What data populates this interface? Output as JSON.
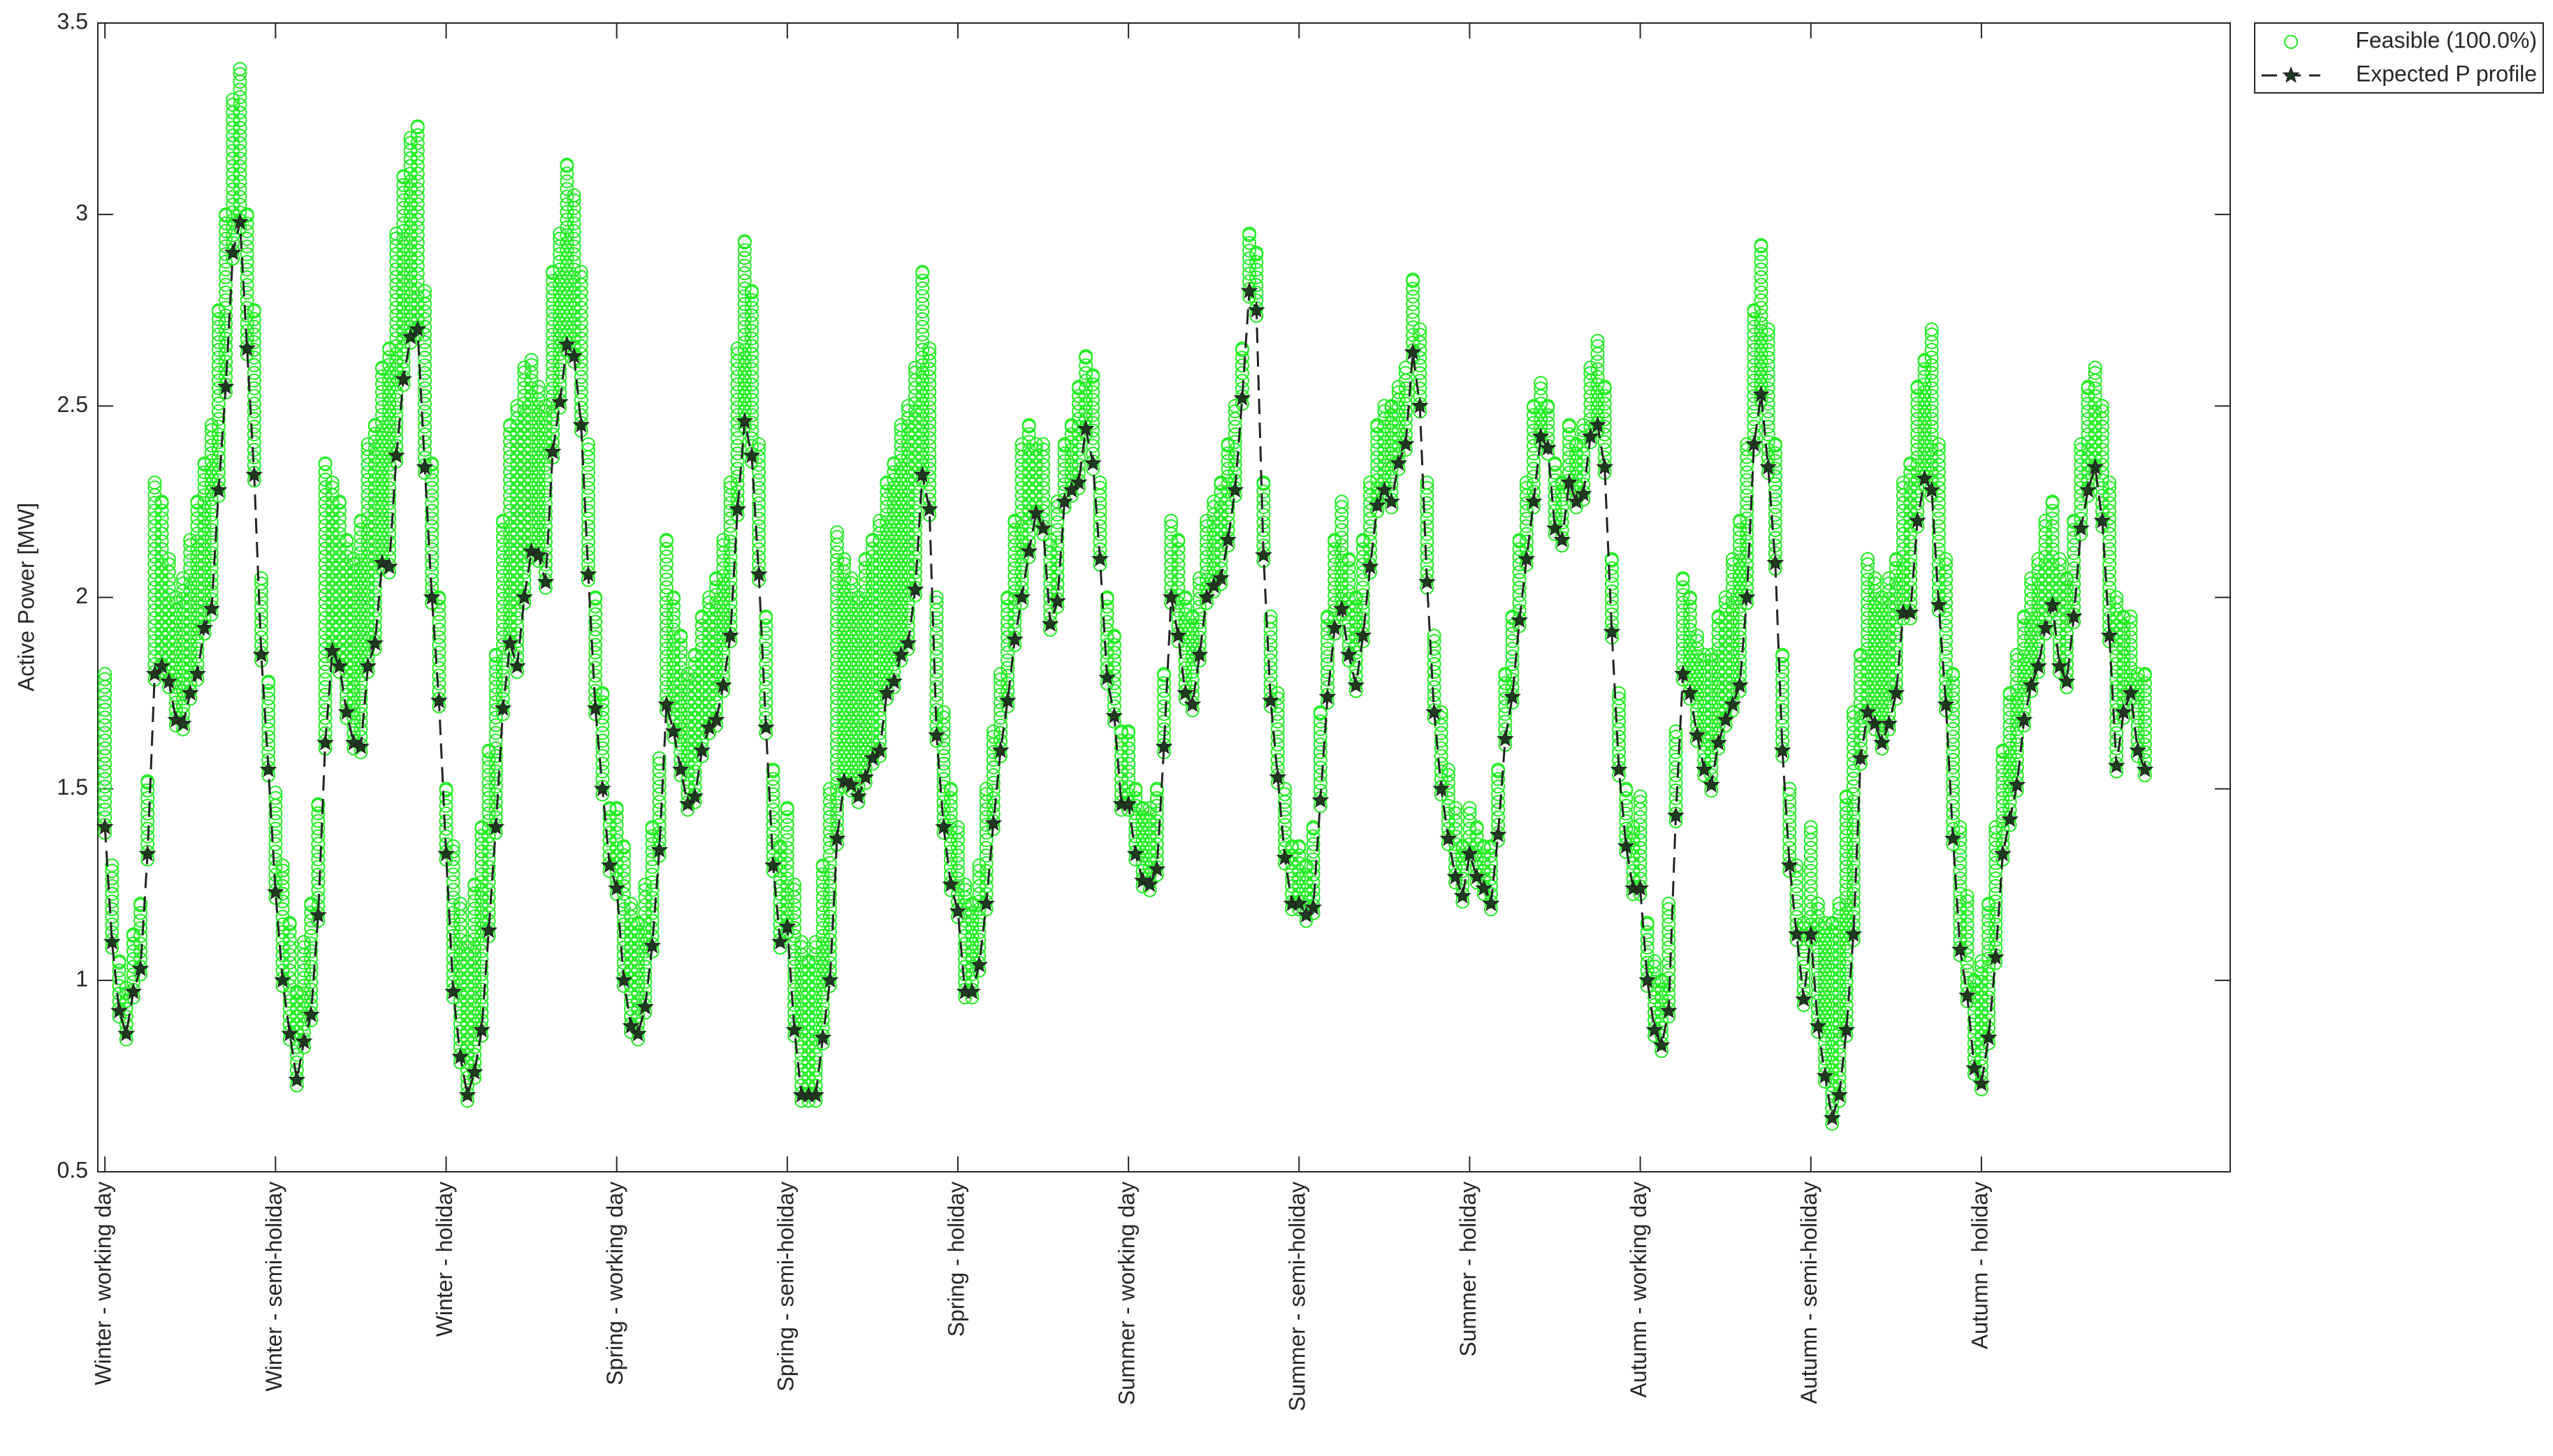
{
  "chart_data": {
    "type": "scatter-line",
    "ylabel": "Active Power [MW]",
    "xlim": [
      0,
      300
    ],
    "ylim": [
      0.5,
      3.5
    ],
    "yticks": [
      0.5,
      1,
      1.5,
      2,
      2.5,
      3,
      3.5
    ],
    "xticks": [
      {
        "value": 1,
        "label": "Winter - working day"
      },
      {
        "value": 25,
        "label": "Winter - semi-holiday"
      },
      {
        "value": 49,
        "label": "Winter - holiday"
      },
      {
        "value": 73,
        "label": "Spring - working day"
      },
      {
        "value": 97,
        "label": "Spring - semi-holiday"
      },
      {
        "value": 121,
        "label": "Spring - holiday"
      },
      {
        "value": 145,
        "label": "Summer - working day"
      },
      {
        "value": 169,
        "label": "Summer - semi-holiday"
      },
      {
        "value": 193,
        "label": "Summer - holiday"
      },
      {
        "value": 217,
        "label": "Autumn - working day"
      },
      {
        "value": 241,
        "label": "Autumn - semi-holiday"
      },
      {
        "value": 265,
        "label": "Autumn - holiday"
      }
    ],
    "grid": false,
    "legend": "outside-right",
    "x": [
      1,
      2,
      3,
      4,
      5,
      6,
      7,
      8,
      9,
      10,
      11,
      12,
      13,
      14,
      15,
      16,
      17,
      18,
      19,
      20,
      21,
      22,
      23,
      24,
      25,
      26,
      27,
      28,
      29,
      30,
      31,
      32,
      33,
      34,
      35,
      36,
      37,
      38,
      39,
      40,
      41,
      42,
      43,
      44,
      45,
      46,
      47,
      48,
      49,
      50,
      51,
      52,
      53,
      54,
      55,
      56,
      57,
      58,
      59,
      60,
      61,
      62,
      63,
      64,
      65,
      66,
      67,
      68,
      69,
      70,
      71,
      72,
      73,
      74,
      75,
      76,
      77,
      78,
      79,
      80,
      81,
      82,
      83,
      84,
      85,
      86,
      87,
      88,
      89,
      90,
      91,
      92,
      93,
      94,
      95,
      96,
      97,
      98,
      99,
      100,
      101,
      102,
      103,
      104,
      105,
      106,
      107,
      108,
      109,
      110,
      111,
      112,
      113,
      114,
      115,
      116,
      117,
      118,
      119,
      120,
      121,
      122,
      123,
      124,
      125,
      126,
      127,
      128,
      129,
      130,
      131,
      132,
      133,
      134,
      135,
      136,
      137,
      138,
      139,
      140,
      141,
      142,
      143,
      144,
      145,
      146,
      147,
      148,
      149,
      150,
      151,
      152,
      153,
      154,
      155,
      156,
      157,
      158,
      159,
      160,
      161,
      162,
      163,
      164,
      165,
      166,
      167,
      168,
      169,
      170,
      171,
      172,
      173,
      174,
      175,
      176,
      177,
      178,
      179,
      180,
      181,
      182,
      183,
      184,
      185,
      186,
      187,
      188,
      189,
      190,
      191,
      192,
      193,
      194,
      195,
      196,
      197,
      198,
      199,
      200,
      201,
      202,
      203,
      204,
      205,
      206,
      207,
      208,
      209,
      210,
      211,
      212,
      213,
      214,
      215,
      216,
      217,
      218,
      219,
      220,
      221,
      222,
      223,
      224,
      225,
      226,
      227,
      228,
      229,
      230,
      231,
      232,
      233,
      234,
      235,
      236,
      237,
      238,
      239,
      240,
      241,
      242,
      243,
      244,
      245,
      246,
      247,
      248,
      249,
      250,
      251,
      252,
      253,
      254,
      255,
      256,
      257,
      258,
      259,
      260,
      261,
      262,
      263,
      264,
      265,
      266,
      267,
      268,
      269,
      270,
      271,
      272,
      273,
      274,
      275,
      276,
      277,
      278,
      279,
      280,
      281,
      282,
      283,
      284,
      285,
      286,
      287,
      288
    ],
    "series": [
      {
        "name": "Feasible (100.0%)",
        "color": "#22ee22",
        "marker": "circle",
        "values": [
          1.8,
          1.3,
          1.05,
          0.98,
          1.12,
          1.2,
          1.52,
          2.3,
          2.25,
          2.1,
          2.0,
          2.05,
          2.15,
          2.25,
          2.35,
          2.45,
          2.75,
          3.0,
          3.3,
          3.38,
          3.0,
          2.75,
          2.05,
          1.78,
          1.49,
          1.3,
          1.15,
          0.97,
          1.1,
          1.2,
          1.46,
          2.35,
          2.3,
          2.25,
          2.15,
          2.1,
          2.2,
          2.4,
          2.45,
          2.6,
          2.65,
          2.95,
          3.1,
          3.2,
          3.23,
          2.8,
          2.35,
          2.0,
          1.5,
          1.35,
          1.2,
          1.1,
          1.25,
          1.4,
          1.6,
          1.85,
          2.2,
          2.45,
          2.5,
          2.6,
          2.62,
          2.55,
          2.5,
          2.85,
          2.95,
          3.13,
          3.05,
          2.85,
          2.4,
          2.0,
          1.75,
          1.45,
          1.45,
          1.35,
          1.2,
          1.15,
          1.25,
          1.4,
          1.58,
          2.15,
          2.0,
          1.9,
          1.8,
          1.85,
          1.95,
          2.0,
          2.05,
          2.15,
          2.3,
          2.65,
          2.93,
          2.8,
          2.4,
          1.95,
          1.55,
          1.35,
          1.45,
          1.25,
          1.1,
          1.05,
          1.1,
          1.3,
          1.5,
          2.17,
          2.1,
          2.05,
          2.0,
          2.1,
          2.15,
          2.2,
          2.3,
          2.35,
          2.45,
          2.5,
          2.6,
          2.85,
          2.65,
          2.0,
          1.7,
          1.5,
          1.4,
          1.25,
          1.2,
          1.3,
          1.5,
          1.65,
          1.8,
          2.0,
          2.2,
          2.4,
          2.45,
          2.4,
          2.4,
          2.15,
          2.25,
          2.4,
          2.45,
          2.55,
          2.63,
          2.58,
          2.3,
          2.0,
          1.9,
          1.65,
          1.65,
          1.5,
          1.45,
          1.45,
          1.5,
          1.8,
          2.2,
          2.15,
          2.0,
          1.95,
          2.05,
          2.2,
          2.25,
          2.3,
          2.4,
          2.5,
          2.65,
          2.95,
          2.9,
          2.3,
          1.95,
          1.75,
          1.5,
          1.35,
          1.35,
          1.3,
          1.4,
          1.7,
          1.95,
          2.15,
          2.25,
          2.1,
          2.0,
          2.15,
          2.3,
          2.45,
          2.5,
          2.5,
          2.55,
          2.6,
          2.83,
          2.7,
          2.3,
          1.9,
          1.7,
          1.55,
          1.45,
          1.35,
          1.45,
          1.4,
          1.35,
          1.35,
          1.55,
          1.8,
          1.95,
          2.15,
          2.3,
          2.5,
          2.56,
          2.5,
          2.35,
          2.3,
          2.45,
          2.4,
          2.45,
          2.6,
          2.67,
          2.55,
          2.1,
          1.75,
          1.5,
          1.4,
          1.48,
          1.15,
          1.05,
          1.0,
          1.2,
          1.65,
          2.05,
          2.0,
          1.9,
          1.85,
          1.85,
          1.95,
          2.0,
          2.1,
          2.2,
          2.4,
          2.75,
          2.92,
          2.7,
          2.4,
          1.85,
          1.5,
          1.3,
          1.15,
          1.4,
          1.2,
          1.15,
          1.15,
          1.2,
          1.48,
          1.7,
          1.85,
          2.1,
          2.05,
          2.0,
          2.05,
          2.1,
          2.3,
          2.35,
          2.55,
          2.62,
          2.7,
          2.4,
          2.1,
          1.8,
          1.4,
          1.22,
          1.0,
          1.05,
          1.2,
          1.4,
          1.6,
          1.75,
          1.85,
          1.95,
          2.05,
          2.1,
          2.2,
          2.25,
          2.1,
          2.05,
          2.2,
          2.4,
          2.55,
          2.6,
          2.5,
          2.3,
          2.0,
          1.95,
          1.95,
          1.8,
          1.8
        ]
      },
      {
        "name": "Expected P profile",
        "color": "#222222",
        "marker": "star",
        "values": [
          1.4,
          1.1,
          0.92,
          0.86,
          0.97,
          1.03,
          1.33,
          1.8,
          1.82,
          1.78,
          1.68,
          1.67,
          1.75,
          1.8,
          1.92,
          1.97,
          2.28,
          2.55,
          2.9,
          2.98,
          2.65,
          2.32,
          1.85,
          1.55,
          1.23,
          1.0,
          0.86,
          0.74,
          0.84,
          0.91,
          1.17,
          1.62,
          1.86,
          1.82,
          1.7,
          1.62,
          1.61,
          1.82,
          1.88,
          2.09,
          2.08,
          2.37,
          2.57,
          2.68,
          2.7,
          2.34,
          2.0,
          1.73,
          1.33,
          0.97,
          0.8,
          0.7,
          0.76,
          0.87,
          1.13,
          1.4,
          1.71,
          1.88,
          1.82,
          2.0,
          2.12,
          2.11,
          2.04,
          2.38,
          2.51,
          2.66,
          2.63,
          2.45,
          2.06,
          1.71,
          1.5,
          1.3,
          1.24,
          1.0,
          0.88,
          0.86,
          0.93,
          1.09,
          1.34,
          1.72,
          1.65,
          1.55,
          1.46,
          1.48,
          1.6,
          1.66,
          1.68,
          1.77,
          1.9,
          2.23,
          2.46,
          2.37,
          2.06,
          1.66,
          1.3,
          1.1,
          1.14,
          0.87,
          0.7,
          0.7,
          0.7,
          0.85,
          1.0,
          1.37,
          1.52,
          1.51,
          1.48,
          1.53,
          1.58,
          1.6,
          1.75,
          1.78,
          1.85,
          1.88,
          2.02,
          2.32,
          2.23,
          1.64,
          1.4,
          1.25,
          1.18,
          0.97,
          0.97,
          1.04,
          1.2,
          1.41,
          1.6,
          1.73,
          1.89,
          2.0,
          2.12,
          2.22,
          2.18,
          1.93,
          1.99,
          2.25,
          2.28,
          2.3,
          2.44,
          2.35,
          2.1,
          1.79,
          1.69,
          1.46,
          1.46,
          1.33,
          1.26,
          1.25,
          1.29,
          1.61,
          2.0,
          1.9,
          1.75,
          1.72,
          1.85,
          2.0,
          2.03,
          2.05,
          2.15,
          2.28,
          2.52,
          2.8,
          2.75,
          2.11,
          1.73,
          1.53,
          1.32,
          1.2,
          1.2,
          1.17,
          1.19,
          1.47,
          1.74,
          1.92,
          1.97,
          1.85,
          1.77,
          1.9,
          2.08,
          2.24,
          2.28,
          2.25,
          2.35,
          2.4,
          2.64,
          2.5,
          2.04,
          1.7,
          1.5,
          1.37,
          1.27,
          1.22,
          1.33,
          1.27,
          1.24,
          1.2,
          1.38,
          1.63,
          1.74,
          1.94,
          2.1,
          2.25,
          2.42,
          2.39,
          2.18,
          2.15,
          2.3,
          2.25,
          2.27,
          2.42,
          2.45,
          2.34,
          1.91,
          1.55,
          1.35,
          1.24,
          1.24,
          1.0,
          0.87,
          0.83,
          0.92,
          1.43,
          1.8,
          1.75,
          1.64,
          1.55,
          1.51,
          1.62,
          1.68,
          1.72,
          1.77,
          2.0,
          2.4,
          2.53,
          2.34,
          2.09,
          1.6,
          1.3,
          1.12,
          0.95,
          1.12,
          0.88,
          0.75,
          0.64,
          0.7,
          0.87,
          1.12,
          1.58,
          1.7,
          1.67,
          1.62,
          1.67,
          1.75,
          1.96,
          1.96,
          2.2,
          2.31,
          2.28,
          1.98,
          1.72,
          1.37,
          1.08,
          0.96,
          0.77,
          0.73,
          0.85,
          1.06,
          1.33,
          1.42,
          1.51,
          1.68,
          1.77,
          1.82,
          1.92,
          1.98,
          1.82,
          1.78,
          1.95,
          2.18,
          2.28,
          2.34,
          2.2,
          1.9,
          1.56,
          1.7,
          1.75,
          1.6,
          1.55
        ]
      }
    ]
  }
}
